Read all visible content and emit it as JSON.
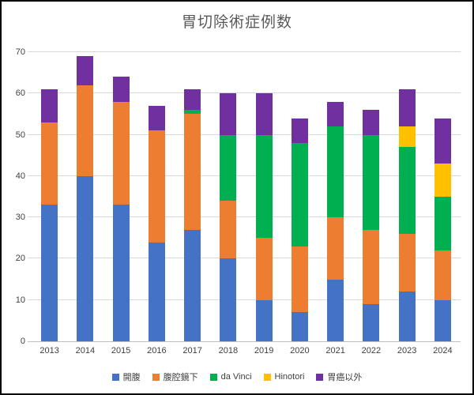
{
  "chart_data": {
    "type": "bar",
    "stacked": true,
    "title": "胃切除術症例数",
    "categories": [
      "2013",
      "2014",
      "2015",
      "2016",
      "2017",
      "2018",
      "2019",
      "2020",
      "2021",
      "2022",
      "2023",
      "2024"
    ],
    "series": [
      {
        "name": "開腹",
        "color": "#4472C4",
        "values": [
          33,
          40,
          33,
          24,
          27,
          20,
          10,
          7,
          15,
          9,
          12,
          10
        ]
      },
      {
        "name": "腹腔鏡下",
        "color": "#ED7D31",
        "values": [
          20,
          22,
          25,
          27,
          28,
          14,
          15,
          16,
          15,
          18,
          14,
          12
        ]
      },
      {
        "name": "da Vinci",
        "color": "#00B050",
        "values": [
          0,
          0,
          0,
          0,
          1,
          16,
          25,
          25,
          22,
          23,
          21,
          13
        ]
      },
      {
        "name": "Hinotori",
        "color": "#FFC000",
        "values": [
          0,
          0,
          0,
          0,
          0,
          0,
          0,
          0,
          0,
          0,
          5,
          8
        ]
      },
      {
        "name": "胃癌以外",
        "color": "#7030A0",
        "values": [
          8,
          7,
          6,
          6,
          5,
          10,
          10,
          6,
          6,
          6,
          9,
          11
        ]
      }
    ],
    "totals": [
      61,
      69,
      64,
      57,
      61,
      60,
      60,
      54,
      58,
      56,
      61,
      54
    ],
    "ylim": [
      0,
      70
    ],
    "yticks": [
      0,
      10,
      20,
      30,
      40,
      50,
      60,
      70
    ],
    "grid": true,
    "legend_position": "bottom"
  },
  "styles": {
    "title_color": "#595959",
    "axis_label_color": "#404040",
    "gridline_color": "#d9d9d9",
    "axis_line_color": "#bfbfbf",
    "frame_border_color": "#000000",
    "background": "#ffffff"
  }
}
